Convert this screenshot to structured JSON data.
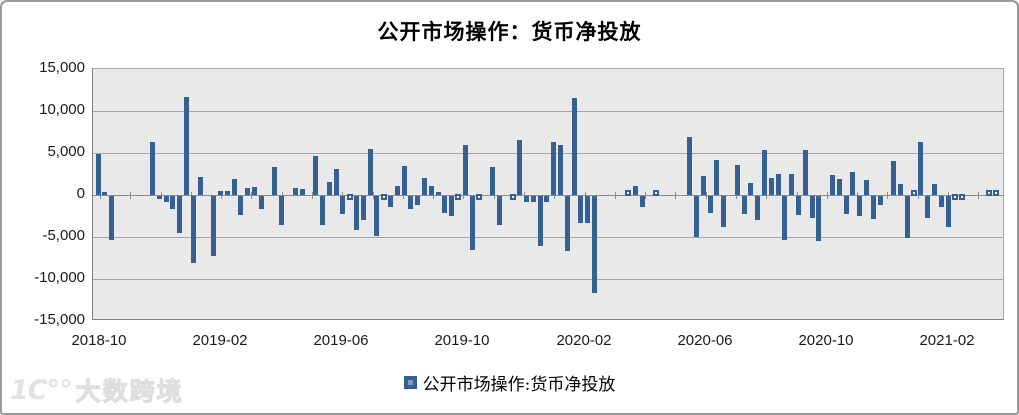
{
  "window": {
    "background": "#ffffff",
    "border_color": "#9b9b9b"
  },
  "chart_data": {
    "type": "bar",
    "title": "公开市场操作：货币净投放",
    "legend": {
      "position": "bottom",
      "entries": [
        {
          "label": "公开市场操作:货币净投放",
          "color": "#376092"
        }
      ]
    },
    "colors": {
      "bar": "#376092",
      "plot_background": "#e9e9e9",
      "gridline": "#a6a6a6",
      "axis_line": "#808080",
      "text": "#1a1a1a"
    },
    "grid": true,
    "y_axis": {
      "min": -15000,
      "max": 15000,
      "tick_step": 5000,
      "tick_labels": [
        "15,000",
        "10,000",
        "5,000",
        "0",
        "-5,000",
        "-10,000",
        "-15,000"
      ]
    },
    "x_axis": {
      "start": "2018-10",
      "end": "2021-03",
      "frequency": "weekly",
      "tick_labels": [
        "2018-10",
        "2019-02",
        "2019-06",
        "2019-10",
        "2020-02",
        "2020-06",
        "2020-10",
        "2021-02"
      ]
    },
    "series": [
      {
        "name": "公开市场操作:货币净投放",
        "values": [
          4900,
          400,
          -5200,
          0,
          0,
          0,
          0,
          0,
          6300,
          -400,
          -700,
          -1500,
          -4400,
          11700,
          -8000,
          2200,
          0,
          -7200,
          500,
          500,
          1900,
          -2300,
          800,
          1000,
          -1500,
          0,
          3300,
          -3400,
          0,
          800,
          700,
          0,
          4600,
          -3500,
          1500,
          3100,
          -2200,
          -100,
          -4000,
          -2900,
          5500,
          -4800,
          -100,
          -1300,
          1100,
          3400,
          -1600,
          -1100,
          2000,
          1100,
          400,
          -2000,
          -2400,
          -300,
          6000,
          -6400,
          -100,
          0,
          3300,
          -3500,
          0,
          -100,
          6500,
          -700,
          -700,
          -5900,
          -700,
          6300,
          6000,
          -6600,
          11500,
          -3200,
          -3200,
          -11600,
          0,
          0,
          0,
          0,
          300,
          1100,
          -1300,
          0,
          300,
          0,
          0,
          0,
          0,
          6900,
          -4900,
          2300,
          -2000,
          4200,
          -3700,
          0,
          3600,
          -2100,
          1400,
          -2900,
          5400,
          2000,
          2500,
          -5200,
          2500,
          -2300,
          5300,
          -2600,
          -5400,
          0,
          2400,
          1900,
          -2100,
          2700,
          -2400,
          1800,
          -2700,
          -1100,
          0,
          4100,
          1300,
          -5000,
          200,
          6300,
          -2600,
          1300,
          -1300,
          -3700,
          -200,
          -200,
          0,
          0,
          0,
          200,
          200
        ]
      }
    ]
  },
  "watermark": {
    "logo": "1C°°",
    "text": "大数跨境"
  }
}
